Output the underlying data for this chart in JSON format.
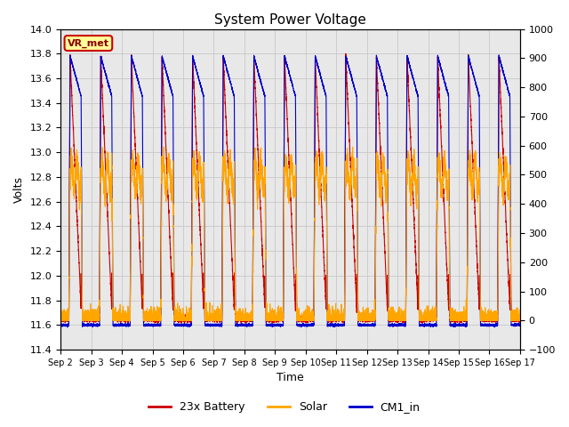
{
  "title": "System Power Voltage",
  "xlabel": "Time",
  "ylabel_left": "Volts",
  "ylabel_right": "",
  "ylim_left": [
    11.4,
    14.0
  ],
  "ylim_right": [
    -100,
    1000
  ],
  "yticks_left": [
    11.4,
    11.6,
    11.8,
    12.0,
    12.2,
    12.4,
    12.6,
    12.8,
    13.0,
    13.2,
    13.4,
    13.6,
    13.8,
    14.0
  ],
  "yticks_right": [
    -100,
    0,
    100,
    200,
    300,
    400,
    500,
    600,
    700,
    800,
    900,
    1000
  ],
  "x_labels": [
    "Sep 2",
    "Sep 3",
    "Sep 4",
    "Sep 5",
    "Sep 6",
    "Sep 7",
    "Sep 8",
    "Sep 9",
    "Sep 10",
    "Sep 11",
    "Sep 12",
    "Sep 13",
    "Sep 14",
    "Sep 15",
    "Sep 16",
    "Sep 17"
  ],
  "n_days": 15,
  "battery_color": "#CC0000",
  "solar_color": "#FFA500",
  "cm1_color": "#0000CC",
  "grid_color": "#C8C8C8",
  "bg_color": "#E8E8E8",
  "annotation_text": "VR_met",
  "annotation_bg": "#FFFF99",
  "annotation_border": "#CC0000"
}
